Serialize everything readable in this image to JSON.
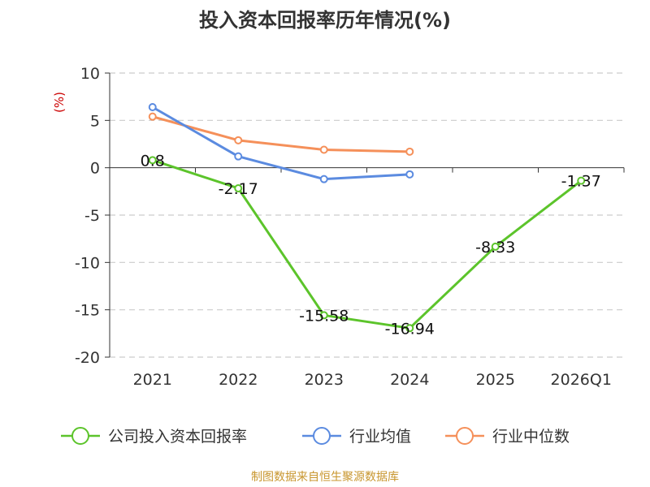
{
  "chart_data": {
    "type": "line",
    "title": "投入资本回报率历年情况(%)",
    "ylabel": "(%)",
    "categories": [
      "2021",
      "2022",
      "2023",
      "2024",
      "2025",
      "2026Q1"
    ],
    "ylim": [
      -20,
      10
    ],
    "yticks": [
      10,
      5,
      0,
      -5,
      -10,
      -15,
      -20
    ],
    "grid": true,
    "legend_position": "bottom",
    "series": [
      {
        "name": "公司投入资本回报率",
        "color": "#5cc42b",
        "values": [
          0.8,
          -2.17,
          -15.58,
          -16.94,
          -8.33,
          -1.37
        ],
        "labels": [
          "0.8",
          "-2.17",
          "-15.58",
          "-16.94",
          "-8.33",
          "-1.37"
        ]
      },
      {
        "name": "行业均值",
        "color": "#5b8be0",
        "values": [
          6.4,
          1.2,
          -1.2,
          -0.7,
          null,
          null
        ]
      },
      {
        "name": "行业中位数",
        "color": "#f5905a",
        "values": [
          5.4,
          2.9,
          1.9,
          1.7,
          null,
          null
        ]
      }
    ]
  },
  "footer": {
    "source": "制图数据来自恒生聚源数据库"
  }
}
